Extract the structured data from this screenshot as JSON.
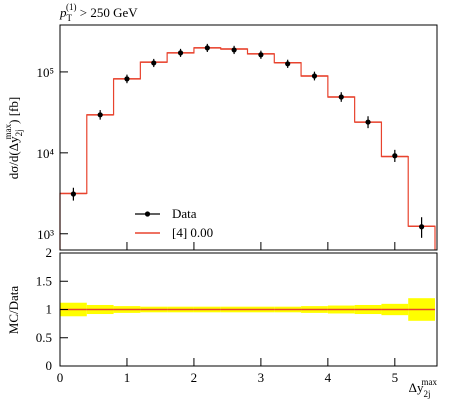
{
  "chart_data": [
    {
      "type": "histogram",
      "title": [
        "p",
        "T",
        "(1)",
        " > 250 GeV"
      ],
      "ylabel": [
        "dσ/d(Δy",
        "2j",
        "max",
        ") [fb]"
      ],
      "bins": [
        0,
        0.4,
        0.8,
        1.2,
        1.6,
        2.0,
        2.4,
        2.8,
        3.2,
        3.6,
        4.0,
        4.4,
        4.8,
        5.2,
        5.6
      ],
      "log_y": true,
      "ylim": [
        630,
        380000
      ],
      "yticks": [
        {
          "value": 1000,
          "label": "10³"
        },
        {
          "value": 10000,
          "label": "10⁴"
        },
        {
          "value": 100000,
          "label": "10⁵"
        }
      ],
      "series": [
        {
          "name": "Data",
          "color": "#000000",
          "values": [
            3100,
            29500,
            82000,
            129000,
            172000,
            198000,
            187000,
            163000,
            126000,
            89000,
            49000,
            24000,
            9200,
            1220
          ],
          "errors": [
            300,
            1500,
            3000,
            4000,
            5000,
            6000,
            6000,
            5000,
            4000,
            3500,
            2500,
            2000,
            800,
            250
          ]
        },
        {
          "name": "[4] 0.00",
          "color": "#e8432e",
          "values": [
            3150,
            29500,
            82000,
            132000,
            172000,
            198000,
            192000,
            167000,
            130000,
            89000,
            49000,
            24000,
            9000,
            1240
          ]
        }
      ]
    },
    {
      "type": "histogram",
      "ylabel": "MC/Data",
      "xlabel": [
        "Δy",
        "2j",
        "max"
      ],
      "xlim": [
        0,
        5.6
      ],
      "xticks": [
        0,
        1,
        2,
        3,
        4,
        5
      ],
      "ylim": [
        0,
        2
      ],
      "yticks": [
        0,
        0.5,
        1,
        1.5,
        2
      ],
      "values": [
        1,
        1,
        1,
        1,
        1,
        1,
        1,
        1,
        1,
        1,
        1,
        1,
        1,
        1
      ],
      "band": [
        0.12,
        0.08,
        0.06,
        0.05,
        0.05,
        0.05,
        0.05,
        0.05,
        0.05,
        0.06,
        0.07,
        0.08,
        0.1,
        0.2
      ],
      "color": "#e8432e",
      "band_color": "#ffff00"
    }
  ]
}
